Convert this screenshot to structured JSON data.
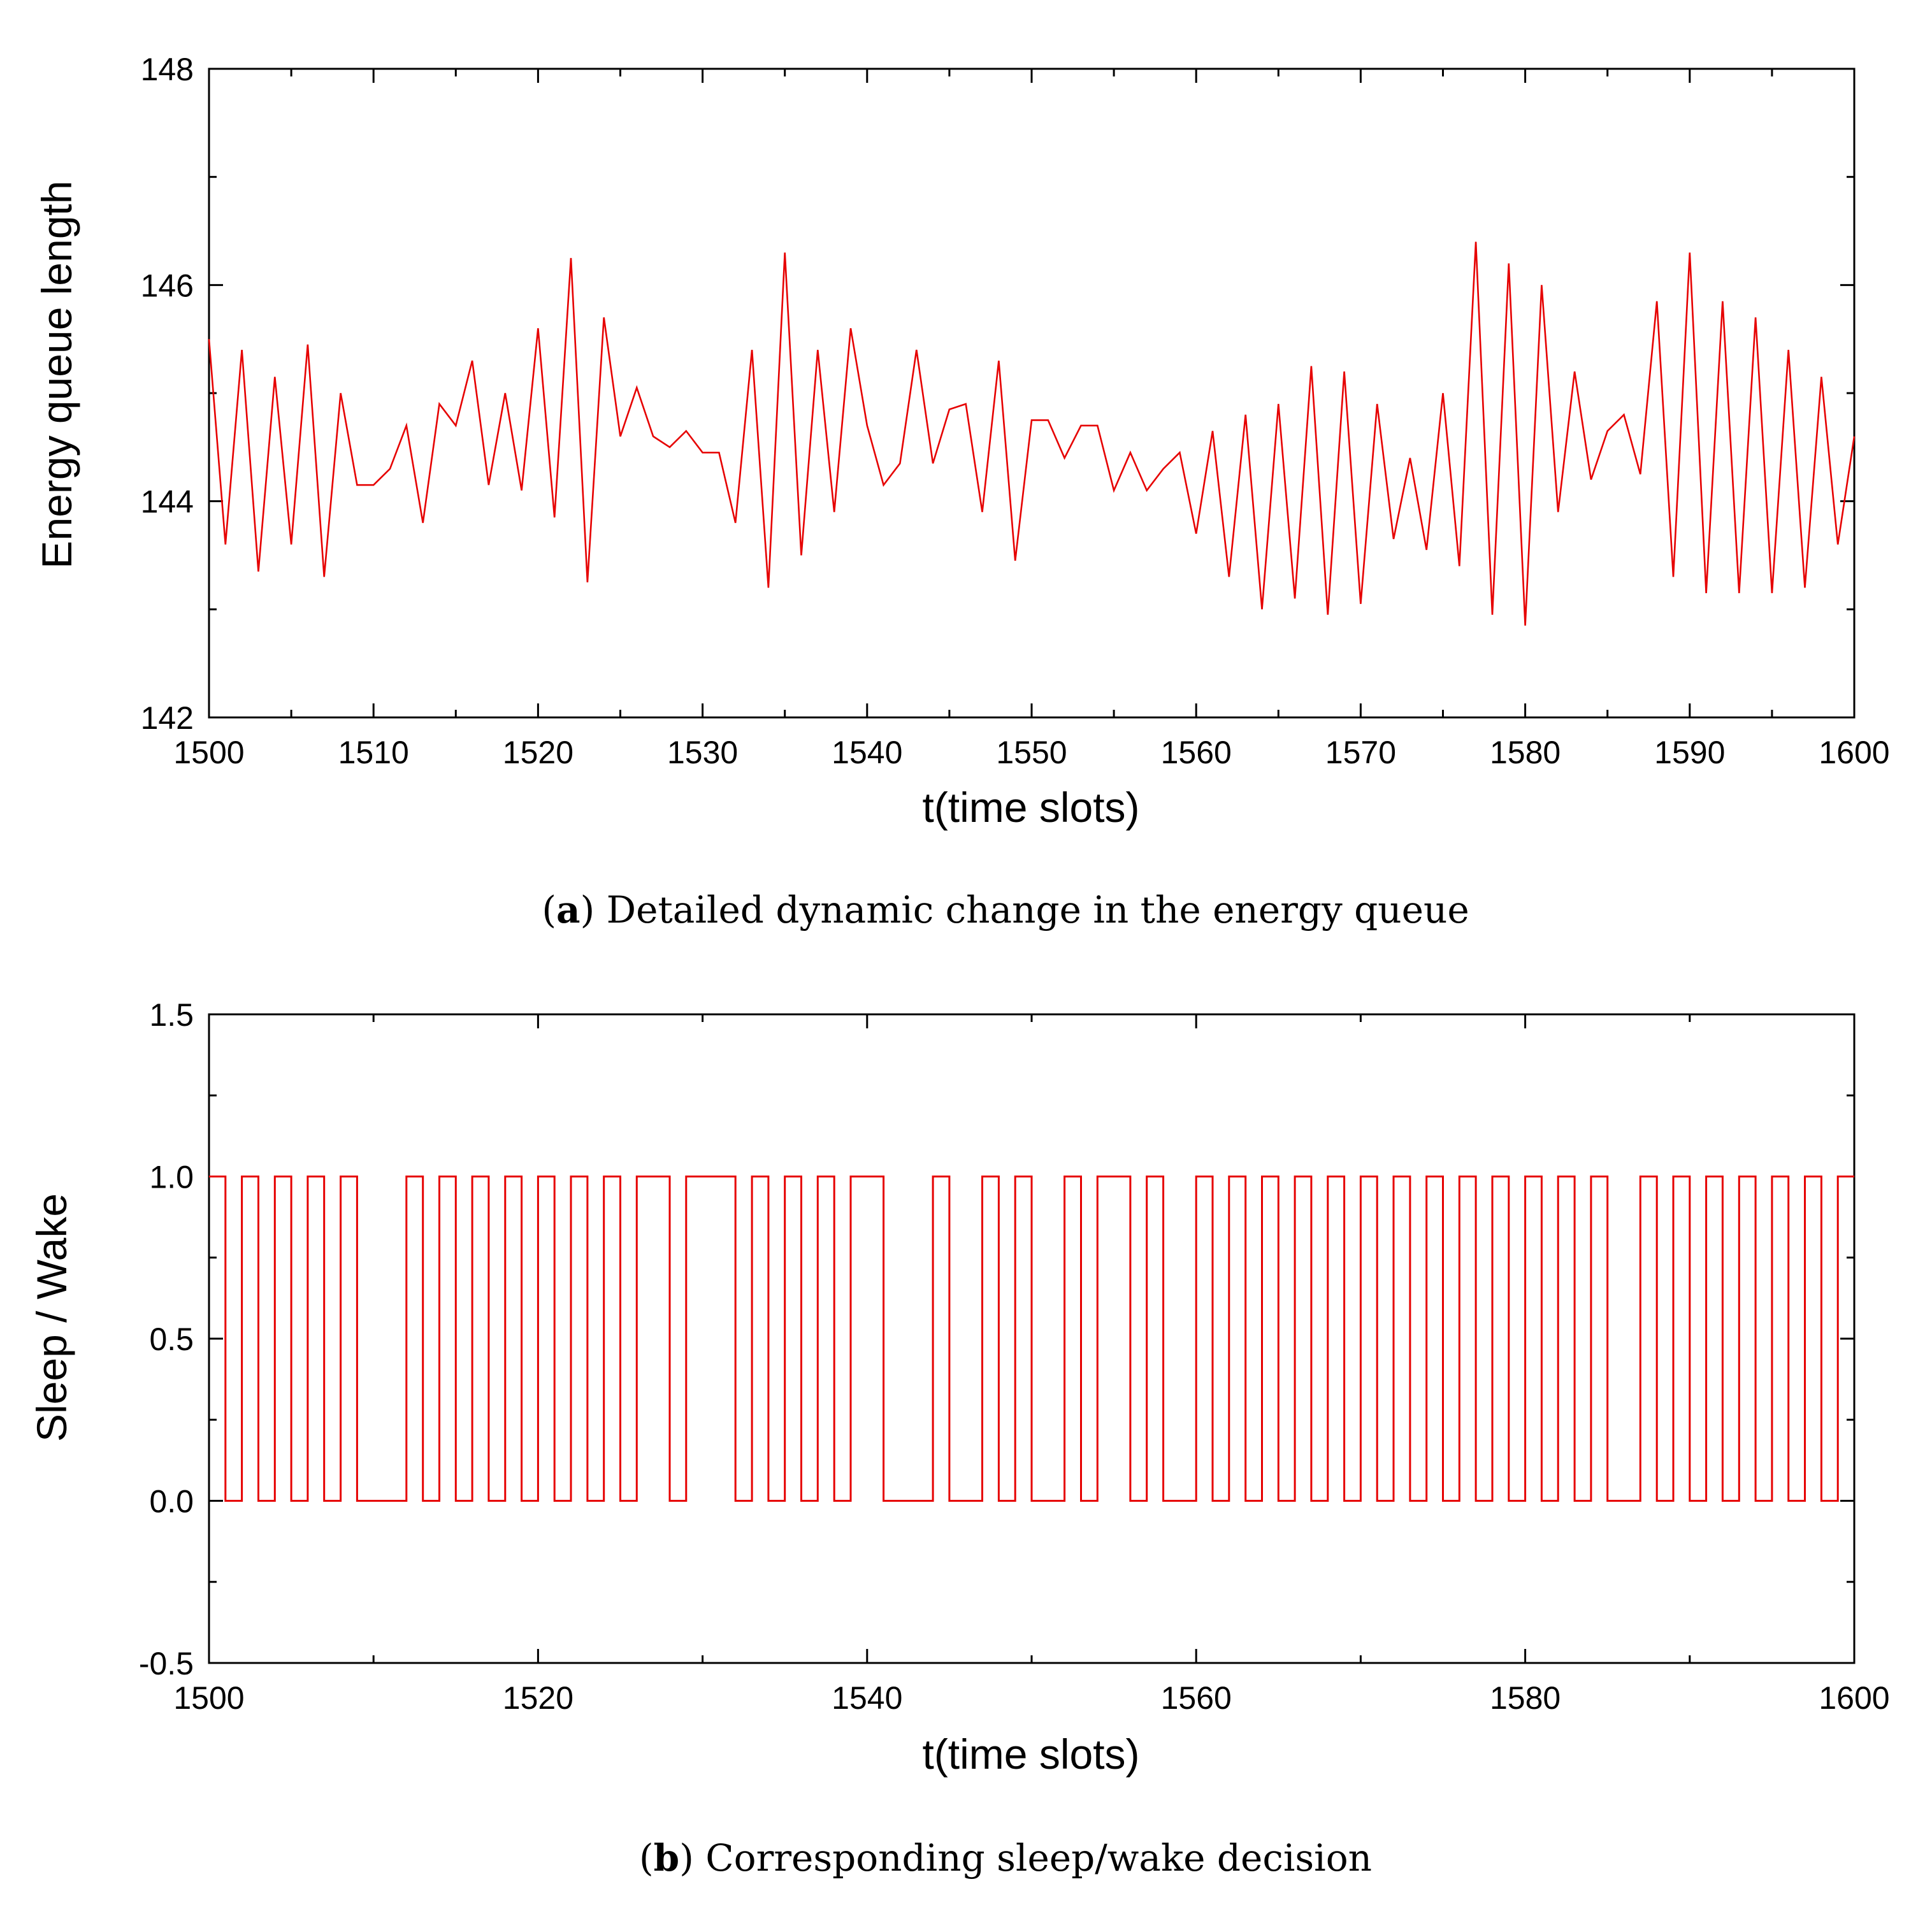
{
  "chart_data": [
    {
      "type": "line",
      "panel": "a",
      "caption_letter": "a",
      "caption_text": "Detailed dynamic change in the energy queue",
      "xlabel": "t(time slots)",
      "ylabel": "Energy queue length",
      "xlim": [
        1500,
        1600
      ],
      "ylim": [
        142,
        148
      ],
      "xticks": [
        1500,
        1510,
        1520,
        1530,
        1540,
        1550,
        1560,
        1570,
        1580,
        1590,
        1600
      ],
      "yticks": [
        142,
        144,
        146,
        148
      ],
      "color": "#e60000",
      "x_start": 1500,
      "x_step": 1,
      "values": [
        145.5,
        143.6,
        145.4,
        143.35,
        145.15,
        143.6,
        145.45,
        143.3,
        145.0,
        144.15,
        144.15,
        144.3,
        144.7,
        143.8,
        144.9,
        144.7,
        145.3,
        144.15,
        145.0,
        144.1,
        145.6,
        143.85,
        146.25,
        143.25,
        145.7,
        144.6,
        145.05,
        144.6,
        144.5,
        144.65,
        144.45,
        144.45,
        143.8,
        145.4,
        143.2,
        146.3,
        143.5,
        145.4,
        143.9,
        145.6,
        144.7,
        144.15,
        144.35,
        145.4,
        144.35,
        144.85,
        144.9,
        143.9,
        145.3,
        143.45,
        144.75,
        144.75,
        144.4,
        144.7,
        144.7,
        144.1,
        144.45,
        144.1,
        144.3,
        144.45,
        143.7,
        144.65,
        143.3,
        144.8,
        143.0,
        144.9,
        143.1,
        145.25,
        142.95,
        145.2,
        143.05,
        144.9,
        143.65,
        144.4,
        143.55,
        145.0,
        143.4,
        146.4,
        142.95,
        146.2,
        142.85,
        146.0,
        143.9,
        145.2,
        144.2,
        144.65,
        144.8,
        144.25,
        145.85,
        143.3,
        146.3,
        143.15,
        145.85,
        143.15,
        145.7,
        143.15,
        145.4,
        143.2,
        145.15,
        143.6,
        144.6
      ]
    },
    {
      "type": "line",
      "panel": "b",
      "step": true,
      "caption_letter": "b",
      "caption_text": "Corresponding sleep/wake decision",
      "xlabel": "t(time slots)",
      "ylabel": "Sleep / Wake",
      "xlim": [
        1500,
        1600
      ],
      "ylim": [
        -0.5,
        1.5
      ],
      "xticks": [
        1500,
        1520,
        1540,
        1560,
        1580,
        1600
      ],
      "yticks": [
        -0.5,
        0.0,
        0.5,
        1.0,
        1.5
      ],
      "ytick_labels": [
        "-0.5",
        "0.0",
        "0.5",
        "1.0",
        "1.5"
      ],
      "color": "#e60000",
      "x_start": 1500,
      "x_step": 1,
      "values": [
        1,
        0,
        1,
        0,
        1,
        0,
        1,
        0,
        1,
        0,
        0,
        0,
        1,
        0,
        1,
        0,
        1,
        0,
        1,
        0,
        1,
        0,
        1,
        0,
        1,
        0,
        1,
        1,
        0,
        1,
        1,
        1,
        0,
        1,
        0,
        1,
        0,
        1,
        0,
        1,
        1,
        0,
        0,
        0,
        1,
        0,
        0,
        1,
        0,
        1,
        0,
        0,
        1,
        0,
        1,
        1,
        0,
        1,
        0,
        0,
        1,
        0,
        1,
        0,
        1,
        0,
        1,
        0,
        1,
        0,
        1,
        0,
        1,
        0,
        1,
        0,
        1,
        0,
        1,
        0,
        1,
        0,
        1,
        0,
        1,
        0,
        0,
        1,
        0,
        1,
        0,
        1,
        0,
        1,
        0,
        1,
        0,
        1,
        0,
        1
      ]
    }
  ]
}
